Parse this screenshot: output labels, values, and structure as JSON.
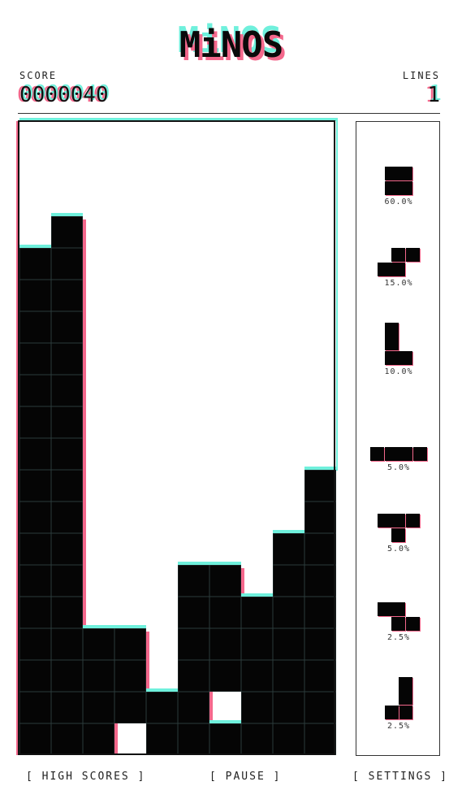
{
  "title": "MiNOS",
  "score": {
    "label": "SCORE",
    "value": "0000040"
  },
  "lines": {
    "label": "LINES",
    "value": "1"
  },
  "board": {
    "columns": 10,
    "rows": 20,
    "column_heights": [
      16,
      17,
      4,
      4,
      2,
      6,
      6,
      5,
      7,
      9
    ],
    "holes": [
      [
        3,
        19
      ],
      [
        6,
        18
      ]
    ]
  },
  "stats": [
    {
      "piece": "O",
      "percent": "60.0%"
    },
    {
      "piece": "S",
      "percent": "15.0%"
    },
    {
      "piece": "L",
      "percent": "10.0%"
    },
    {
      "piece": "I",
      "percent": "5.0%"
    },
    {
      "piece": "T",
      "percent": "5.0%"
    },
    {
      "piece": "Z",
      "percent": "2.5%"
    },
    {
      "piece": "J",
      "percent": "2.5%"
    }
  ],
  "footer": {
    "high_scores": "[ HIGH SCORES ]",
    "pause": "[ PAUSE ]",
    "settings": "[ SETTINGS ]"
  },
  "colors": {
    "accent_cyan": "#6ff0dc",
    "accent_pink": "#f4688c",
    "block": "#050505"
  }
}
